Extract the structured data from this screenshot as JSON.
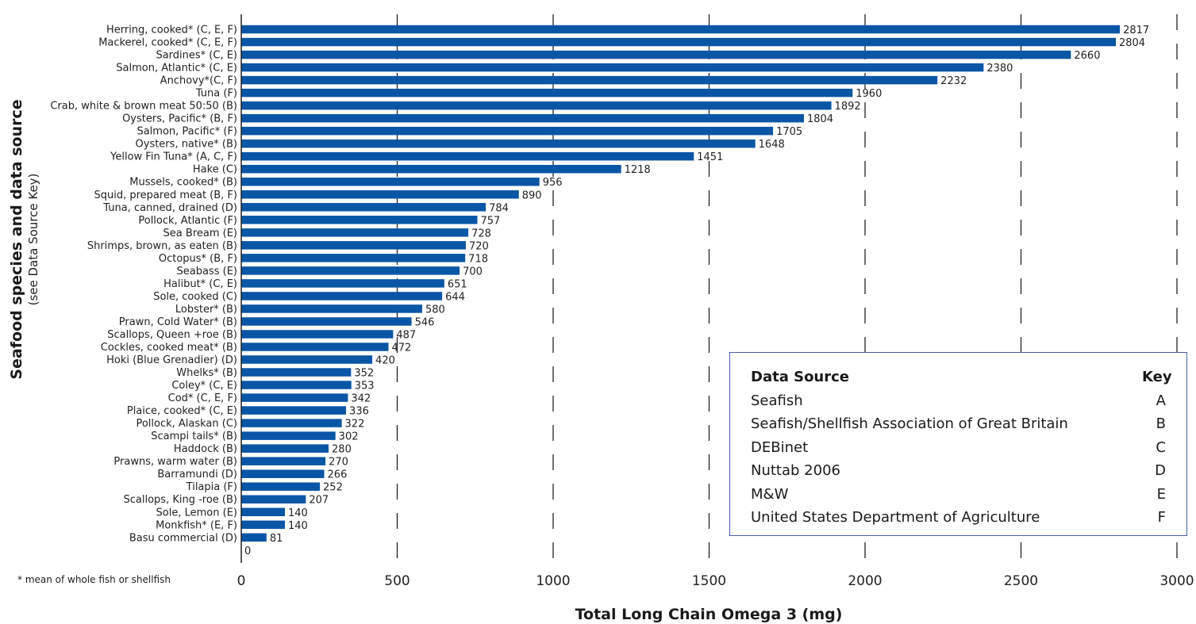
{
  "chart_data": {
    "type": "bar",
    "orientation": "horizontal",
    "xlabel": "Total Long Chain Omega 3 (mg)",
    "ylabel": "Seafood species and data source",
    "ylabel_sub": "(see Data Source Key)",
    "xlim": [
      0,
      3000
    ],
    "xticks": [
      "0",
      "500",
      "1000",
      "1500",
      "2000",
      "2500",
      "3000"
    ],
    "grid": "vertical dashed",
    "bar_color": "#0a56a6",
    "footnote": "* mean of whole fish or shellfish",
    "categories": [
      "Herring, cooked* (C, E, F)",
      "Mackerel, cooked* (C, E, F)",
      "Sardines* (C, E)",
      "Salmon, Atlantic* (C, E)",
      "Anchovy*(C, F)",
      "Tuna (F)",
      "Crab, white & brown meat 50:50 (B)",
      "Oysters, Pacific* (B, F)",
      "Salmon, Pacific* (F)",
      "Oysters, native* (B)",
      "Yellow Fin Tuna* (A, C, F)",
      "Hake (C)",
      "Mussels, cooked* (B)",
      "Squid, prepared meat (B, F)",
      "Tuna, canned, drained (D)",
      "Pollock, Atlantic (F)",
      "Sea Bream (E)",
      "Shrimps, brown, as eaten (B)",
      "Octopus* (B, F)",
      "Seabass (E)",
      "Halibut* (C, E)",
      "Sole, cooked (C)",
      "Lobster* (B)",
      "Prawn, Cold Water* (B)",
      "Scallops, Queen +roe (B)",
      "Cockles, cooked meat* (B)",
      "Hoki (Blue Grenadier) (D)",
      "Whelks* (B)",
      "Coley* (C, E)",
      "Cod* (C, E, F)",
      "Plaice, cooked* (C, E)",
      "Pollock, Alaskan (C)",
      "Scampi tails* (B)",
      "Haddock (B)",
      "Prawns, warm water (B)",
      "Barramundi (D)",
      "Tilapia (F)",
      "Scallops, King -roe (B)",
      "Sole, Lemon (E)",
      "Monkfish* (E, F)",
      "Basu commercial (D)",
      ""
    ],
    "values": [
      2817,
      2804,
      2660,
      2380,
      2232,
      1960,
      1892,
      1804,
      1705,
      1648,
      1451,
      1218,
      956,
      890,
      784,
      757,
      728,
      720,
      718,
      700,
      651,
      644,
      580,
      546,
      487,
      472,
      420,
      352,
      353,
      342,
      336,
      322,
      302,
      280,
      270,
      266,
      252,
      207,
      140,
      140,
      81,
      0
    ]
  },
  "legend": {
    "header_source": "Data Source",
    "header_key": "Key",
    "rows": [
      {
        "source": "Seafish",
        "key": "A"
      },
      {
        "source": "Seafish/Shellfish Association of Great Britain",
        "key": "B"
      },
      {
        "source": "DEBinet",
        "key": "C"
      },
      {
        "source": "Nuttab 2006",
        "key": "D"
      },
      {
        "source": "M&W",
        "key": "E"
      },
      {
        "source": "United States Department of Agriculture",
        "key": "F"
      }
    ]
  }
}
